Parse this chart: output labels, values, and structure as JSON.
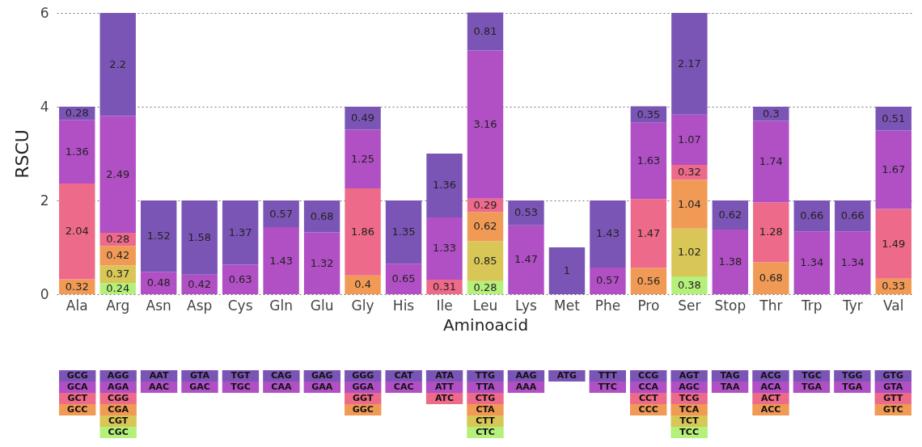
{
  "chart_data": [
    {
      "type": "bar",
      "stacked": true,
      "xlabel": "Aminoacid",
      "ylabel": "RSCU",
      "categories": [
        "Ala",
        "Arg",
        "Asn",
        "Asp",
        "Cys",
        "Gln",
        "Glu",
        "Gly",
        "His",
        "Ile",
        "Leu",
        "Lys",
        "Met",
        "Phe",
        "Pro",
        "Ser",
        "Stop",
        "Thr",
        "Trp",
        "Tyr",
        "Val"
      ],
      "series": [
        {
          "color": "#b5f07a",
          "values": [
            null,
            0.24,
            null,
            null,
            null,
            null,
            null,
            null,
            null,
            null,
            0.28,
            null,
            null,
            null,
            null,
            0.38,
            null,
            null,
            null,
            null,
            null
          ]
        },
        {
          "color": "#d8c657",
          "values": [
            null,
            0.37,
            null,
            null,
            null,
            null,
            null,
            null,
            null,
            null,
            0.85,
            null,
            null,
            null,
            null,
            1.02,
            null,
            null,
            null,
            null,
            null
          ]
        },
        {
          "color": "#f19a55",
          "values": [
            0.32,
            0.42,
            null,
            null,
            null,
            null,
            null,
            0.4,
            null,
            null,
            0.62,
            null,
            null,
            null,
            0.56,
            1.04,
            null,
            0.68,
            null,
            null,
            0.33
          ]
        },
        {
          "color": "#ed6a8a",
          "values": [
            2.04,
            0.28,
            null,
            null,
            null,
            null,
            null,
            1.86,
            null,
            0.31,
            0.29,
            null,
            null,
            null,
            1.47,
            0.32,
            null,
            1.28,
            null,
            null,
            1.49
          ]
        },
        {
          "color": "#b14fc5",
          "values": [
            1.36,
            2.49,
            0.48,
            0.42,
            0.63,
            1.43,
            1.32,
            1.25,
            0.65,
            1.33,
            3.16,
            1.47,
            null,
            0.57,
            1.63,
            1.07,
            1.38,
            1.74,
            1.34,
            1.34,
            1.67
          ]
        },
        {
          "color": "#7b55b5",
          "values": [
            0.28,
            2.2,
            1.52,
            1.58,
            1.37,
            0.57,
            0.68,
            0.49,
            1.35,
            1.36,
            0.81,
            0.53,
            1,
            1.43,
            0.35,
            2.17,
            0.62,
            0.3,
            0.66,
            0.66,
            0.51
          ]
        }
      ],
      "ylim": [
        0,
        6
      ],
      "yticks": [
        0,
        2,
        4,
        6
      ],
      "grid": "y",
      "data_labels": true
    },
    {
      "type": "other",
      "categories": [
        null,
        null,
        null,
        null,
        null,
        null,
        null,
        null,
        null,
        null,
        null,
        null,
        null,
        null,
        null,
        null,
        null,
        null,
        null,
        null,
        null
      ],
      "y_categories": [
        null,
        null,
        null,
        null,
        null,
        null
      ],
      "colors": [
        "#7b55b5",
        "#b14fc5",
        "#ed6a8a",
        "#f19a55",
        "#d8c657",
        "#b5f07a"
      ],
      "cell_labels": [
        [
          "GCG",
          "AGG",
          "AAT",
          "GTA",
          "TGT",
          "CAG",
          "GAG",
          "GGG",
          "CAT",
          "ATA",
          "TTG",
          "AAG",
          "ATG",
          "TTT",
          "CCG",
          "AGT",
          "TAG",
          "ACG",
          "TGC",
          "TGG",
          "GTG"
        ],
        [
          "GCA",
          "AGA",
          "AAC",
          "GAC",
          "TGC",
          "CAA",
          "GAA",
          "GGA",
          "CAC",
          "ATT",
          "TTA",
          "AAA",
          null,
          "TTC",
          "CCA",
          "AGC",
          "TAA",
          "ACA",
          "TGA",
          "TGA",
          "GTA"
        ],
        [
          "GCT",
          "CGG",
          null,
          null,
          null,
          null,
          null,
          "GGT",
          null,
          "ATC",
          "CTG",
          null,
          null,
          null,
          "CCT",
          "TCG",
          null,
          "ACT",
          null,
          null,
          "GTT"
        ],
        [
          "GCC",
          "CGA",
          null,
          null,
          null,
          null,
          null,
          "GGC",
          null,
          null,
          "CTA",
          null,
          null,
          null,
          "CCC",
          "TCA",
          null,
          "ACC",
          null,
          null,
          "GTC"
        ],
        [
          null,
          "CGT",
          null,
          null,
          null,
          null,
          null,
          null,
          null,
          null,
          "CTT",
          null,
          null,
          null,
          null,
          "TCT",
          null,
          null,
          null,
          null,
          null
        ],
        [
          null,
          "CGC",
          null,
          null,
          null,
          null,
          null,
          null,
          null,
          null,
          "CTC",
          null,
          null,
          null,
          null,
          "TCC",
          null,
          null,
          null,
          null,
          null
        ]
      ]
    }
  ]
}
